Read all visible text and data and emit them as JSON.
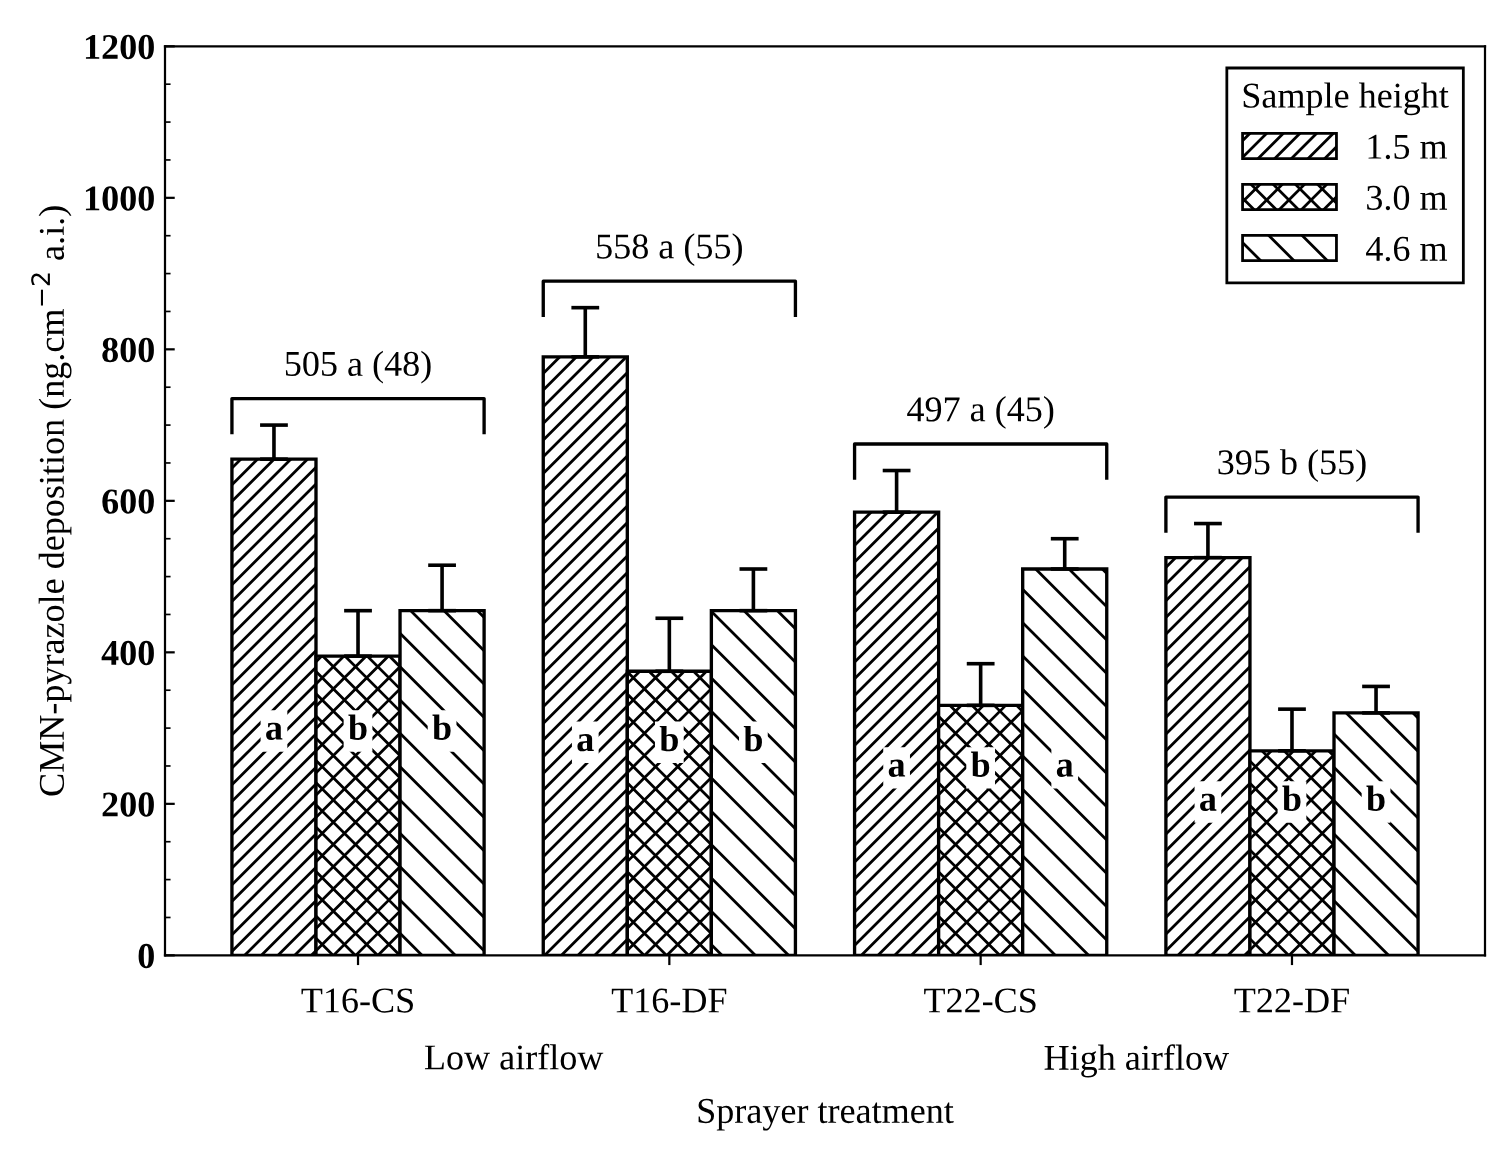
{
  "chart_data": {
    "type": "bar",
    "xlabel": "Sprayer treatment",
    "ylabel": "CMN-pyrazole deposition (ng.cm$^{−2}$ a.i.)",
    "legend_title": "Sample height",
    "categories": [
      "T16-CS",
      "T16-DF",
      "T22-CS",
      "T22-DF"
    ],
    "series": [
      {
        "name": "1.5 m",
        "color": "#000000",
        "values": [
          655,
          790,
          585,
          525
        ],
        "errors": [
          [
            655,
            700
          ],
          [
            790,
            855
          ],
          [
            585,
            640
          ],
          [
            525,
            570
          ]
        ],
        "value_labels": [
          "a",
          "a",
          "a",
          "a"
        ]
      },
      {
        "name": "3.0 m",
        "color": "#000000",
        "values": [
          395,
          375,
          330,
          270
        ],
        "errors": [
          [
            395,
            455
          ],
          [
            375,
            445
          ],
          [
            330,
            385
          ],
          [
            270,
            325
          ]
        ],
        "value_labels": [
          "b",
          "b",
          "b",
          "b"
        ]
      },
      {
        "name": "4.6 m",
        "color": "#000000",
        "values": [
          455,
          455,
          510,
          320
        ],
        "errors": [
          [
            455,
            515
          ],
          [
            455,
            510
          ],
          [
            510,
            550
          ],
          [
            320,
            355
          ]
        ],
        "value_labels": [
          "b",
          "b",
          "a",
          "b"
        ]
      }
    ],
    "annotations": [
      "505 a (48)",
      "558 a (55)",
      "497 a (45)",
      "395 b (55)",
      "Low airflow",
      "High airflow"
    ],
    "ylim": [
      0,
      1200
    ],
    "yticks": [
      0,
      200,
      400,
      600,
      800,
      1000,
      1200
    ],
    "legend": "top right",
    "grid": false
  }
}
